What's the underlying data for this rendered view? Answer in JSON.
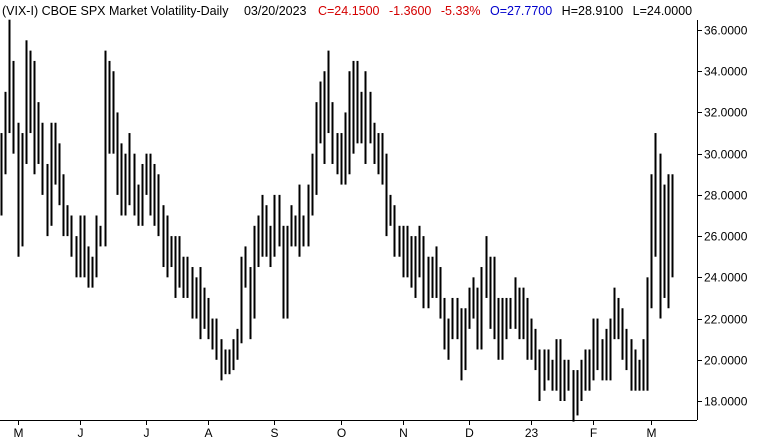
{
  "header": {
    "symbol_label": "(VIX-I) CBOE SPX Market Volatility-Daily",
    "date": "03/20/2023",
    "close": "C=24.1500",
    "change": "-1.3600",
    "change_pct": "-5.33%",
    "open": "O=27.7700",
    "high": "H=28.9100",
    "low": "L=24.0000"
  },
  "colors": {
    "text": "#000000",
    "negative": "#d40000",
    "open": "#0000cc",
    "bars": "#000000",
    "axis": "#000000"
  },
  "chart_data": {
    "type": "ohlc",
    "title": "(VIX-I) CBOE SPX Market Volatility-Daily",
    "ylim": [
      17,
      36.5
    ],
    "yticks": [
      "18.0000",
      "20.0000",
      "22.0000",
      "24.0000",
      "26.0000",
      "28.0000",
      "30.0000",
      "32.0000",
      "34.0000",
      "36.0000"
    ],
    "ytick_values": [
      18,
      20,
      22,
      24,
      26,
      28,
      30,
      32,
      34,
      36
    ],
    "x_labels": [
      "M",
      "J",
      "J",
      "A",
      "S",
      "O",
      "N",
      "D",
      "23",
      "F",
      "M"
    ],
    "x_label_bar_index": [
      4,
      19,
      35,
      50,
      66,
      82,
      97,
      113,
      128,
      143,
      157
    ],
    "grid": false,
    "bars": [
      [
        30,
        31,
        27,
        29.5
      ],
      [
        29.5,
        33,
        29,
        32
      ],
      [
        32,
        36.5,
        31,
        34
      ],
      [
        34,
        34.5,
        30,
        31
      ],
      [
        31,
        31.5,
        25,
        26
      ],
      [
        26,
        31,
        25.5,
        30
      ],
      [
        30,
        35.5,
        29.5,
        34
      ],
      [
        34,
        35,
        31,
        34
      ],
      [
        34,
        34.5,
        29,
        31
      ],
      [
        31,
        32.5,
        29.5,
        31
      ],
      [
        31,
        31.5,
        28,
        29
      ],
      [
        29,
        29.5,
        26,
        27
      ],
      [
        27,
        31.5,
        26.5,
        31
      ],
      [
        31,
        31.5,
        28.5,
        30
      ],
      [
        30,
        30.5,
        27.5,
        28
      ],
      [
        28,
        29,
        26,
        27
      ],
      [
        27,
        27.5,
        26,
        26.5
      ],
      [
        26.5,
        27,
        25,
        25.5
      ],
      [
        25.5,
        26,
        24,
        24.5
      ],
      [
        24.5,
        27,
        24,
        26.5
      ],
      [
        26.5,
        27,
        24,
        24.5
      ],
      [
        24.5,
        25.5,
        23.5,
        24
      ],
      [
        24,
        25,
        23.5,
        24.5
      ],
      [
        24.5,
        27,
        24,
        26
      ],
      [
        26,
        26.5,
        25.5,
        26
      ],
      [
        26,
        35,
        25.5,
        33
      ],
      [
        33,
        34.5,
        30,
        31
      ],
      [
        31,
        34,
        30,
        31.5
      ],
      [
        31.5,
        32,
        28,
        30
      ],
      [
        30,
        30.5,
        27,
        28
      ],
      [
        28,
        30,
        27,
        29
      ],
      [
        29,
        31,
        27.5,
        29.5
      ],
      [
        29.5,
        30,
        27,
        28
      ],
      [
        28,
        28.5,
        26.5,
        27
      ],
      [
        27,
        29.5,
        26.5,
        29.5
      ],
      [
        29.5,
        30,
        28,
        29.5
      ],
      [
        29.5,
        30,
        27,
        29.3
      ],
      [
        29.3,
        29.5,
        26.5,
        27
      ],
      [
        27,
        29,
        26,
        26.5
      ],
      [
        26.5,
        27.5,
        24.5,
        26.5
      ],
      [
        26.5,
        27,
        24,
        25.5
      ],
      [
        25.5,
        26,
        24.5,
        25
      ],
      [
        25,
        26,
        23,
        25.5
      ],
      [
        25.5,
        26,
        23.5,
        24.5
      ],
      [
        24.5,
        25,
        23,
        24
      ],
      [
        24,
        25,
        23,
        24
      ],
      [
        24,
        24.5,
        22,
        23
      ],
      [
        23,
        24,
        22,
        23.5
      ],
      [
        23.5,
        24.5,
        21,
        22
      ],
      [
        22,
        23.5,
        21.5,
        22.5
      ],
      [
        22.5,
        23,
        21,
        21.8
      ],
      [
        21.8,
        22,
        20.5,
        21.5
      ],
      [
        21.5,
        22,
        20,
        20.5
      ],
      [
        20.5,
        21,
        19,
        19.8
      ],
      [
        19.8,
        20.5,
        19.3,
        20
      ],
      [
        20,
        20.5,
        19.3,
        20.1
      ],
      [
        20.1,
        21,
        19.5,
        20.5
      ],
      [
        20.5,
        21.5,
        20,
        21
      ],
      [
        21,
        25,
        20.8,
        24.5
      ],
      [
        24.5,
        25.5,
        23.5,
        24
      ],
      [
        24,
        24.5,
        21,
        22.5
      ],
      [
        22.5,
        26.5,
        22,
        26
      ],
      [
        26,
        27,
        24.5,
        26.5
      ],
      [
        26.5,
        28,
        25,
        26.5
      ],
      [
        26.5,
        27.5,
        25,
        25.5
      ],
      [
        25.5,
        26.5,
        24.5,
        26
      ],
      [
        26,
        28,
        25,
        27
      ],
      [
        27,
        28,
        25.5,
        26
      ],
      [
        26,
        26.5,
        22,
        22.5
      ],
      [
        22.5,
        26.5,
        22,
        26
      ],
      [
        26,
        27.5,
        25.5,
        26.5
      ],
      [
        26.5,
        27,
        25.5,
        26
      ],
      [
        26,
        28.5,
        25,
        26.5
      ],
      [
        26.5,
        27,
        25.5,
        26
      ],
      [
        26,
        28.5,
        25.5,
        28
      ],
      [
        28,
        30,
        27,
        28.5
      ],
      [
        28.5,
        32.5,
        28,
        32
      ],
      [
        32,
        33.5,
        30.5,
        31
      ],
      [
        31,
        34,
        29.5,
        33
      ],
      [
        33,
        35,
        31,
        31.5
      ],
      [
        31.5,
        32.5,
        29.5,
        30.5
      ],
      [
        30.5,
        31,
        29,
        30
      ],
      [
        30,
        31,
        28.5,
        29
      ],
      [
        29,
        32,
        28.5,
        31.5
      ],
      [
        31.5,
        34,
        29,
        33
      ],
      [
        33,
        34.5,
        30,
        31.5
      ],
      [
        31.5,
        34.5,
        30.5,
        31
      ],
      [
        31,
        33,
        30.5,
        32
      ],
      [
        32,
        34,
        29.5,
        32.5
      ],
      [
        32.5,
        33,
        30.5,
        31
      ],
      [
        31,
        31.5,
        29.5,
        30.5
      ],
      [
        30.5,
        31,
        29,
        29.5
      ],
      [
        29.5,
        31,
        28.5,
        29.5
      ],
      [
        29.5,
        30,
        26,
        27
      ],
      [
        27,
        28,
        26.5,
        27
      ],
      [
        27,
        27.5,
        25,
        25.5
      ],
      [
        25.5,
        26.5,
        25,
        26
      ],
      [
        26,
        26.5,
        24,
        24.5
      ],
      [
        24.5,
        26.5,
        24,
        25.5
      ],
      [
        25.5,
        26,
        23.5,
        24
      ],
      [
        24,
        26,
        23,
        25
      ],
      [
        25,
        26.5,
        24,
        25.5
      ],
      [
        25.5,
        26,
        22.5,
        23
      ],
      [
        23,
        25,
        22.5,
        24
      ],
      [
        24,
        25,
        23,
        24.5
      ],
      [
        24.5,
        25.5,
        23,
        23.5
      ],
      [
        23.5,
        24.5,
        22,
        22.5
      ],
      [
        22.5,
        23,
        20.5,
        21
      ],
      [
        21,
        22,
        20,
        21.5
      ],
      [
        21.5,
        23,
        21,
        22.5
      ],
      [
        22.5,
        23,
        21,
        21.5
      ],
      [
        21.5,
        22.5,
        19,
        20
      ],
      [
        20,
        22.5,
        19.5,
        22
      ],
      [
        22,
        23.5,
        21.5,
        23
      ],
      [
        23,
        24,
        22,
        22.5
      ],
      [
        22.5,
        23.5,
        20.5,
        21
      ],
      [
        21,
        24.5,
        20.5,
        24
      ],
      [
        24,
        26,
        23,
        24.5
      ],
      [
        24.5,
        25,
        21.5,
        22
      ],
      [
        22,
        25,
        21,
        22.5
      ],
      [
        22.5,
        23,
        20,
        20.5
      ],
      [
        20.5,
        23,
        20,
        22
      ],
      [
        22,
        23,
        21,
        22.5
      ],
      [
        22.5,
        23,
        21.5,
        22
      ],
      [
        22,
        24,
        21.5,
        23
      ],
      [
        23,
        23.5,
        21,
        21.5
      ],
      [
        21.5,
        23.5,
        21,
        22.5
      ],
      [
        22.5,
        23,
        20,
        20.5
      ],
      [
        20.5,
        22,
        20,
        21
      ],
      [
        21,
        21.5,
        19.5,
        20
      ],
      [
        20,
        20.5,
        18,
        19
      ],
      [
        19,
        20.5,
        18.5,
        20
      ],
      [
        20,
        20.5,
        19,
        19.5
      ],
      [
        19.5,
        20,
        18.5,
        19
      ],
      [
        19,
        21,
        18.5,
        20.5
      ],
      [
        20.5,
        21,
        18,
        18.5
      ],
      [
        18.5,
        20,
        18,
        19.5
      ],
      [
        19.5,
        20,
        18.5,
        19
      ],
      [
        19,
        19.5,
        17,
        17.5
      ],
      [
        17.5,
        19.5,
        17.3,
        19
      ],
      [
        19,
        20,
        18,
        19.5
      ],
      [
        19.5,
        20.5,
        18.5,
        20
      ],
      [
        20,
        20.5,
        18.5,
        19.5
      ],
      [
        19.5,
        22,
        19,
        21.5
      ],
      [
        21.5,
        22,
        19.5,
        20
      ],
      [
        20,
        21,
        19,
        20.5
      ],
      [
        20.5,
        21.5,
        19,
        19.5
      ],
      [
        19.5,
        22,
        19,
        21.5
      ],
      [
        21.5,
        23.5,
        21,
        22.5
      ],
      [
        22.5,
        23,
        21,
        22
      ],
      [
        22,
        22.5,
        20,
        20.5
      ],
      [
        20.5,
        21.5,
        19.5,
        20
      ],
      [
        20,
        21,
        18.5,
        19.5
      ],
      [
        19.5,
        20.5,
        18.5,
        19
      ],
      [
        19,
        20,
        18.5,
        19.5
      ],
      [
        19.5,
        21,
        18.5,
        19
      ],
      [
        19,
        24,
        18.5,
        23.5
      ],
      [
        23.5,
        29,
        22.5,
        28
      ],
      [
        28,
        31,
        25,
        29
      ],
      [
        29,
        30,
        22,
        24
      ],
      [
        24,
        28.5,
        23,
        27
      ],
      [
        27,
        29,
        22.5,
        25.5
      ],
      [
        25.5,
        29,
        24,
        24.2
      ]
    ]
  }
}
